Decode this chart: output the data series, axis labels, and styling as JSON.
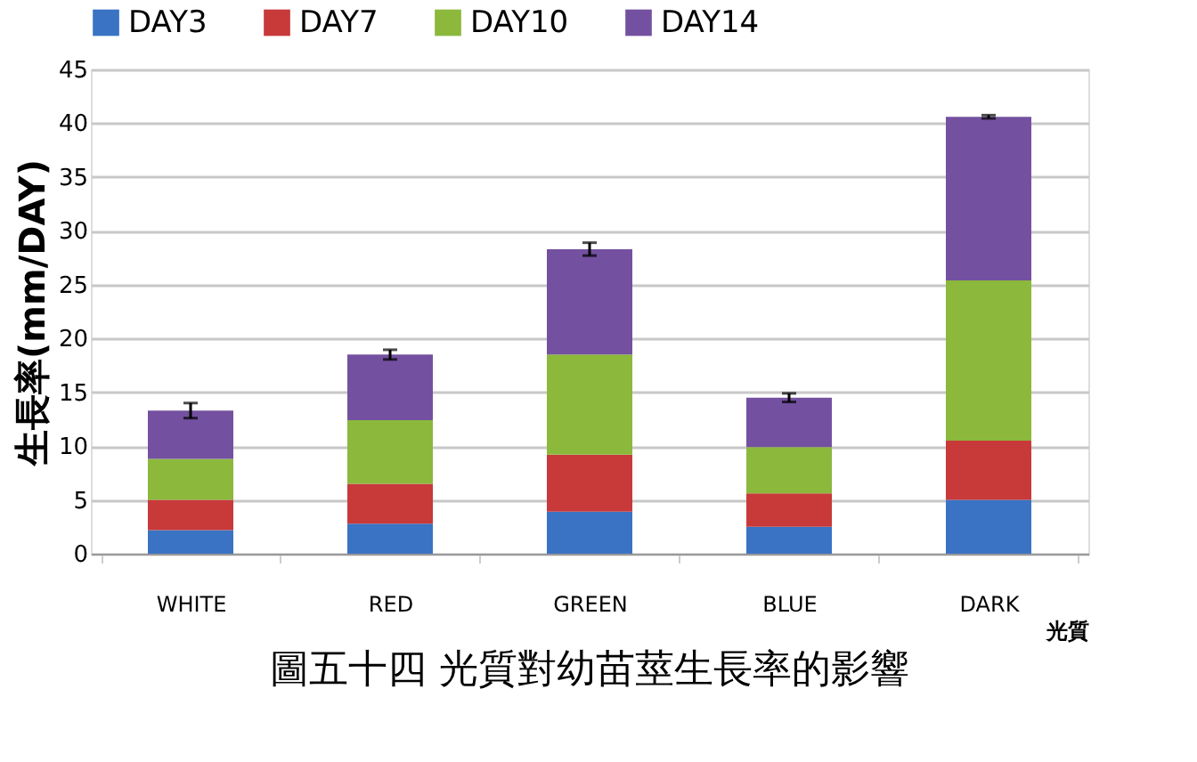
{
  "chart_data": {
    "type": "bar",
    "stacked": true,
    "title": "圖五十四 光質對幼苗莖生長率的影響",
    "xlabel": "光質",
    "ylabel": "生長率(mm/DAY)",
    "categories": [
      "WHITE",
      "RED",
      "GREEN",
      "BLUE",
      "DARK"
    ],
    "series": [
      {
        "name": "DAY3",
        "color": "#3a73c4",
        "values": [
          2.2,
          2.8,
          3.9,
          2.5,
          5.0
        ]
      },
      {
        "name": "DAY7",
        "color": "#c8393a",
        "values": [
          2.8,
          3.7,
          5.3,
          3.1,
          5.5
        ]
      },
      {
        "name": "DAY10",
        "color": "#8cb83c",
        "values": [
          3.8,
          5.9,
          9.3,
          4.3,
          14.9
        ]
      },
      {
        "name": "DAY14",
        "color": "#7451a0",
        "values": [
          4.5,
          6.1,
          9.8,
          4.6,
          15.2
        ],
        "errors": [
          0.7,
          0.45,
          0.6,
          0.4,
          0.15
        ]
      }
    ],
    "ylim": [
      0,
      45
    ],
    "yticks": [
      0,
      5,
      10,
      15,
      20,
      25,
      30,
      35,
      40,
      45
    ],
    "grid": "y",
    "legend": "top"
  }
}
